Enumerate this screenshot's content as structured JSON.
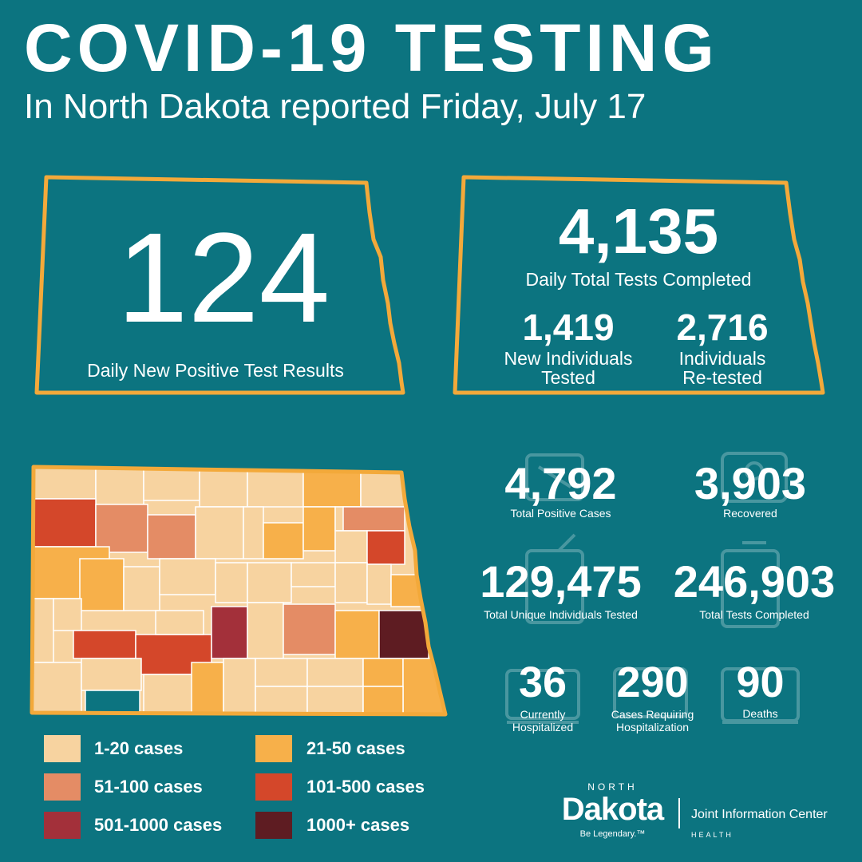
{
  "header": {
    "title": "COVID-19 TESTING",
    "subtitle": "In North Dakota reported Friday, July 17"
  },
  "colors": {
    "background": "#0c7480",
    "accent_outline": "#f3a93a",
    "tier1": "#f7d3a0",
    "tier2": "#f7b04a",
    "tier3": "#e48c65",
    "tier4": "#d4472a",
    "tier5": "#a3303a",
    "tier6": "#5e1c22"
  },
  "daily_positive": {
    "value": "124",
    "label": "Daily New Positive Test Results"
  },
  "daily_tests": {
    "value": "4,135",
    "label": "Daily Total Tests Completed",
    "new_individuals": {
      "value": "1,419",
      "label_line1": "New Individuals",
      "label_line2": "Tested"
    },
    "retested": {
      "value": "2,716",
      "label_line1": "Individuals",
      "label_line2": "Re-tested"
    }
  },
  "totals": {
    "positive": {
      "value": "4,792",
      "label": "Total Positive Cases"
    },
    "recovered": {
      "value": "3,903",
      "label": "Recovered"
    },
    "unique_tested": {
      "value": "129,475",
      "label": "Total Unique Individuals Tested"
    },
    "tests_completed": {
      "value": "246,903",
      "label": "Total Tests Completed"
    },
    "hospitalized": {
      "value": "36",
      "label_line1": "Currently",
      "label_line2": "Hospitalized"
    },
    "cases_hosp": {
      "value": "290",
      "label_line1": "Cases Requiring",
      "label_line2": "Hospitalization"
    },
    "deaths": {
      "value": "90",
      "label": "Deaths"
    }
  },
  "legend": [
    {
      "label": "1-20 cases",
      "color": "#f7d3a0"
    },
    {
      "label": "21-50 cases",
      "color": "#f7b04a"
    },
    {
      "label": "51-100 cases",
      "color": "#e48c65"
    },
    {
      "label": "101-500 cases",
      "color": "#d4472a"
    },
    {
      "label": "501-1000 cases",
      "color": "#a3303a"
    },
    {
      "label": "1000+ cases",
      "color": "#5e1c22"
    }
  ],
  "footer": {
    "logo_top": "NORTH",
    "logo_main": "Dakota",
    "logo_tagline": "Be Legendary.™",
    "org": "Joint Information Center",
    "dept": "HEALTH"
  }
}
